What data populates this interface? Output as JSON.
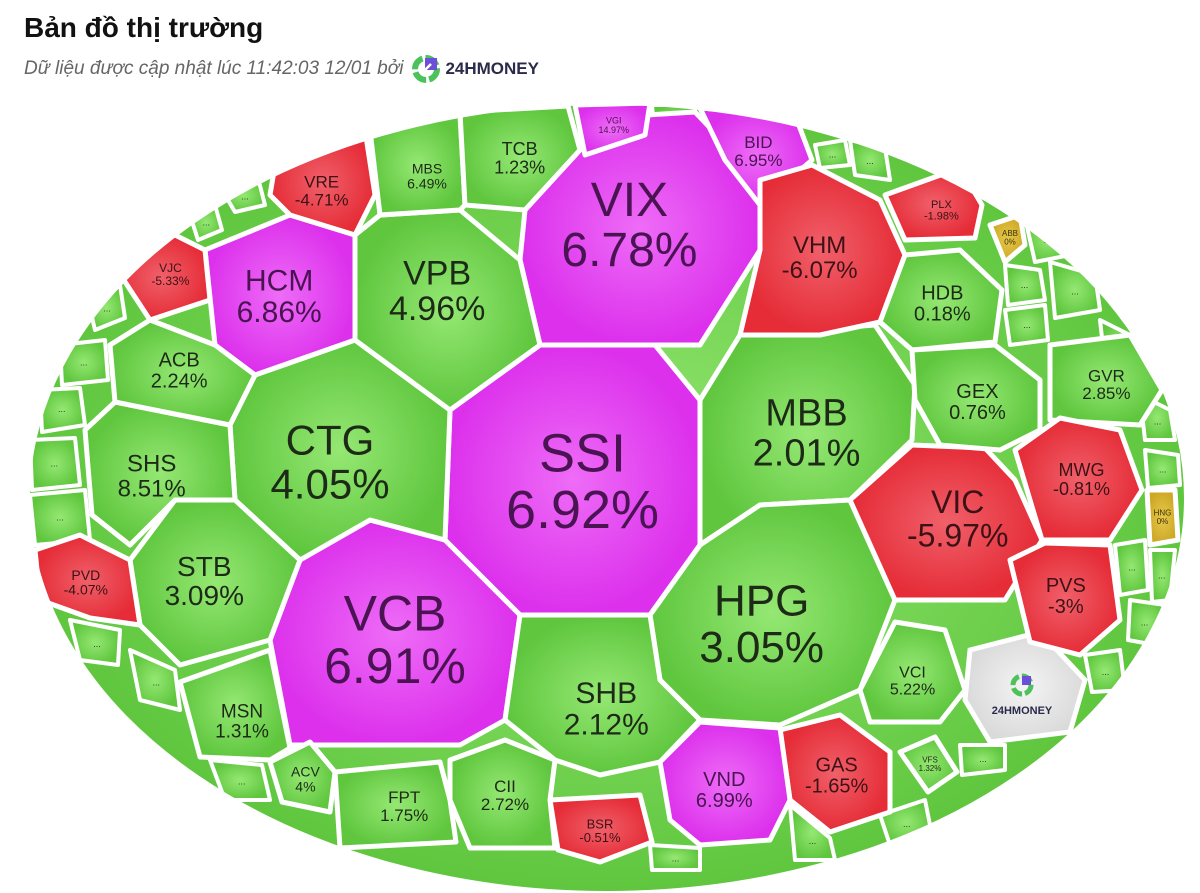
{
  "header": {
    "title": "Bản đồ thị trường",
    "subtitle": "Dữ liệu được cập nhật lúc 11:42:03 12/01 bởi",
    "brand": "24HMONEY"
  },
  "colors": {
    "up": "#6fd14c",
    "down": "#e8353f",
    "ceiling": "#e23ef0",
    "reference": "#d6b22c",
    "logo": "#e6e6e6"
  },
  "filler_label": "...",
  "logo_cell_label": "24HMONEY",
  "cells": [
    {
      "ticker": "SSI",
      "change": "6.92%",
      "status": "ceiling"
    },
    {
      "ticker": "VIX",
      "change": "6.78%",
      "status": "ceiling"
    },
    {
      "ticker": "VCB",
      "change": "6.91%",
      "status": "ceiling"
    },
    {
      "ticker": "CTG",
      "change": "4.05%",
      "status": "up"
    },
    {
      "ticker": "VPB",
      "change": "4.96%",
      "status": "up"
    },
    {
      "ticker": "HCM",
      "change": "6.86%",
      "status": "ceiling"
    },
    {
      "ticker": "MBB",
      "change": "2.01%",
      "status": "up"
    },
    {
      "ticker": "HPG",
      "change": "3.05%",
      "status": "up"
    },
    {
      "ticker": "VIC",
      "change": "-5.97%",
      "status": "down"
    },
    {
      "ticker": "SHB",
      "change": "2.12%",
      "status": "up"
    },
    {
      "ticker": "STB",
      "change": "3.09%",
      "status": "up"
    },
    {
      "ticker": "SHS",
      "change": "8.51%",
      "status": "up"
    },
    {
      "ticker": "ACB",
      "change": "2.24%",
      "status": "up"
    },
    {
      "ticker": "VRE",
      "change": "-4.71%",
      "status": "down"
    },
    {
      "ticker": "MBS",
      "change": "6.49%",
      "status": "up"
    },
    {
      "ticker": "TCB",
      "change": "1.23%",
      "status": "up"
    },
    {
      "ticker": "VGI",
      "change": "14.97%",
      "status": "ceiling"
    },
    {
      "ticker": "BID",
      "change": "6.95%",
      "status": "ceiling"
    },
    {
      "ticker": "VHM",
      "change": "-6.07%",
      "status": "down"
    },
    {
      "ticker": "HDB",
      "change": "0.18%",
      "status": "up"
    },
    {
      "ticker": "GEX",
      "change": "0.76%",
      "status": "up"
    },
    {
      "ticker": "GVR",
      "change": "2.85%",
      "status": "up"
    },
    {
      "ticker": "MWG",
      "change": "-0.81%",
      "status": "down"
    },
    {
      "ticker": "PVS",
      "change": "-3%",
      "status": "down"
    },
    {
      "ticker": "VCI",
      "change": "5.22%",
      "status": "up"
    },
    {
      "ticker": "GAS",
      "change": "-1.65%",
      "status": "down"
    },
    {
      "ticker": "VND",
      "change": "6.99%",
      "status": "ceiling"
    },
    {
      "ticker": "BSR",
      "change": "-0.51%",
      "status": "down"
    },
    {
      "ticker": "CII",
      "change": "2.72%",
      "status": "up"
    },
    {
      "ticker": "FPT",
      "change": "1.75%",
      "status": "up"
    },
    {
      "ticker": "ACV",
      "change": "4%",
      "status": "up"
    },
    {
      "ticker": "MSN",
      "change": "1.31%",
      "status": "up"
    },
    {
      "ticker": "PVD",
      "change": "-4.07%",
      "status": "down"
    },
    {
      "ticker": "VJC",
      "change": "-5.33%",
      "status": "down"
    },
    {
      "ticker": "PLX",
      "change": "-1.98%",
      "status": "down"
    },
    {
      "ticker": "VFS",
      "change": "1.32%",
      "status": "up"
    },
    {
      "ticker": "ABB",
      "change": "0%",
      "status": "reference"
    },
    {
      "ticker": "HNG",
      "change": "0%",
      "status": "reference"
    }
  ]
}
